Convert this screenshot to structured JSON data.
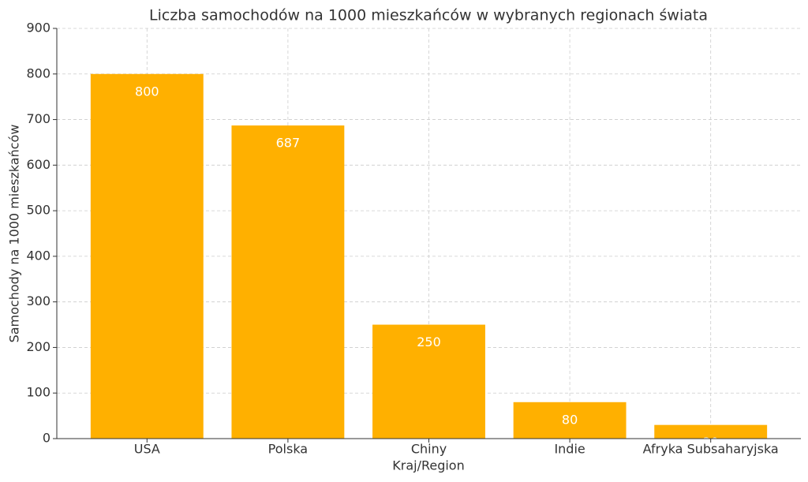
{
  "chart_data": {
    "type": "bar",
    "title": "Liczba samochodów na 1000 mieszkańców w wybranych regionach świata",
    "x_label": "Kraj/Region",
    "y_label": "Samochody na 1000 mieszkańców",
    "categories": [
      "USA",
      "Polska",
      "Chiny",
      "Indie",
      "Afryka Subsaharyjska"
    ],
    "values": [
      800,
      687,
      250,
      80,
      30
    ],
    "color": "#ffb000",
    "ylim": [
      0,
      900
    ],
    "yticks": [
      0,
      100,
      200,
      300,
      400,
      500,
      600,
      700,
      800,
      900
    ],
    "grid": true
  }
}
